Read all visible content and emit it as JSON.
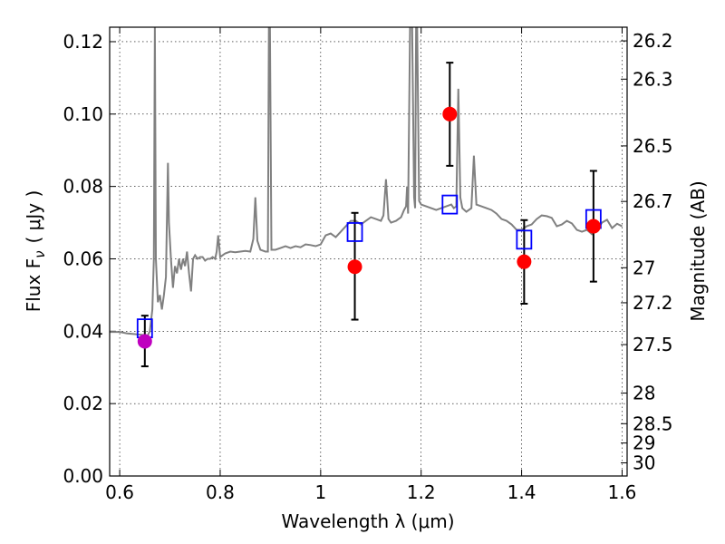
{
  "chart_data": {
    "type": "scatter",
    "xlabel": "Wavelength  λ (μm)",
    "ylabel": "Flux  F",
    "ylabel_sub": "ν",
    "ylabel_unit": "(  μJy )",
    "y2label": "Magnitude (AB)",
    "xlim": [
      0.58,
      1.61
    ],
    "ylim": [
      0.0,
      0.124
    ],
    "grid": true,
    "x_ticks": [
      {
        "value": 0.6,
        "label": "0.6"
      },
      {
        "value": 0.8,
        "label": "0.8"
      },
      {
        "value": 1.0,
        "label": "1"
      },
      {
        "value": 1.2,
        "label": "1.2"
      },
      {
        "value": 1.4,
        "label": "1.4"
      },
      {
        "value": 1.6,
        "label": "1.6"
      }
    ],
    "y_ticks": [
      {
        "value": 0.0,
        "label": "0.00"
      },
      {
        "value": 0.02,
        "label": "0.02"
      },
      {
        "value": 0.04,
        "label": "0.04"
      },
      {
        "value": 0.06,
        "label": "0.06"
      },
      {
        "value": 0.08,
        "label": "0.08"
      },
      {
        "value": 0.1,
        "label": "0.10"
      },
      {
        "value": 0.12,
        "label": "0.12"
      }
    ],
    "y2_ticks": [
      {
        "mag": 26.2,
        "label": "26.2"
      },
      {
        "mag": 26.3,
        "label": "26.3"
      },
      {
        "mag": 26.5,
        "label": "26.5"
      },
      {
        "mag": 26.7,
        "label": "26.7"
      },
      {
        "mag": 27.0,
        "label": "27"
      },
      {
        "mag": 27.2,
        "label": "27.2"
      },
      {
        "mag": 27.5,
        "label": "27.5"
      },
      {
        "mag": 28.0,
        "label": "28"
      },
      {
        "mag": 28.5,
        "label": "28.5"
      },
      {
        "mag": 29.0,
        "label": "29"
      },
      {
        "mag": 30.0,
        "label": "30"
      }
    ],
    "observed": [
      {
        "x": 0.65,
        "y": 0.0372,
        "yerr_low": 0.0303,
        "yerr_high": 0.0443,
        "color": "#bf00bf"
      },
      {
        "x": 1.068,
        "y": 0.0578,
        "yerr_low": 0.0432,
        "yerr_high": 0.0727,
        "color": "#ff0000"
      },
      {
        "x": 1.257,
        "y": 0.1,
        "yerr_low": 0.0857,
        "yerr_high": 0.1142,
        "color": "#ff0000"
      },
      {
        "x": 1.405,
        "y": 0.0592,
        "yerr_low": 0.0476,
        "yerr_high": 0.0707,
        "color": "#ff0000"
      },
      {
        "x": 1.543,
        "y": 0.069,
        "yerr_low": 0.0537,
        "yerr_high": 0.0843,
        "color": "#ff0000"
      }
    ],
    "model_photometry": [
      {
        "x": 0.65,
        "y": 0.0408
      },
      {
        "x": 1.068,
        "y": 0.0674
      },
      {
        "x": 1.257,
        "y": 0.075
      },
      {
        "x": 1.405,
        "y": 0.0653
      },
      {
        "x": 1.543,
        "y": 0.071
      }
    ],
    "spectrum": {
      "color": "#808080",
      "x": [
        0.58,
        0.6,
        0.615,
        0.63,
        0.645,
        0.655,
        0.66,
        0.665,
        0.668,
        0.67,
        0.672,
        0.676,
        0.68,
        0.684,
        0.688,
        0.692,
        0.696,
        0.698,
        0.702,
        0.706,
        0.71,
        0.714,
        0.718,
        0.722,
        0.726,
        0.73,
        0.734,
        0.738,
        0.742,
        0.746,
        0.75,
        0.755,
        0.76,
        0.765,
        0.77,
        0.775,
        0.78,
        0.785,
        0.79,
        0.793,
        0.796,
        0.8,
        0.81,
        0.82,
        0.83,
        0.84,
        0.85,
        0.86,
        0.866,
        0.87,
        0.874,
        0.88,
        0.89,
        0.895,
        0.897,
        0.899,
        0.902,
        0.91,
        0.92,
        0.93,
        0.94,
        0.95,
        0.96,
        0.97,
        0.98,
        0.99,
        1.0,
        1.01,
        1.02,
        1.03,
        1.04,
        1.05,
        1.06,
        1.07,
        1.08,
        1.09,
        1.1,
        1.11,
        1.12,
        1.125,
        1.13,
        1.135,
        1.14,
        1.15,
        1.16,
        1.166,
        1.17,
        1.172,
        1.174,
        1.178,
        1.182,
        1.186,
        1.188,
        1.19,
        1.192,
        1.196,
        1.2,
        1.21,
        1.22,
        1.23,
        1.24,
        1.25,
        1.26,
        1.265,
        1.27,
        1.274,
        1.278,
        1.282,
        1.29,
        1.3,
        1.305,
        1.31,
        1.32,
        1.33,
        1.34,
        1.35,
        1.36,
        1.37,
        1.38,
        1.39,
        1.4,
        1.41,
        1.42,
        1.43,
        1.44,
        1.45,
        1.46,
        1.47,
        1.48,
        1.49,
        1.5,
        1.51,
        1.52,
        1.53,
        1.54,
        1.55,
        1.56,
        1.57,
        1.58,
        1.59,
        1.6
      ],
      "y": [
        0.0398,
        0.0398,
        0.0394,
        0.0392,
        0.039,
        0.0386,
        0.04,
        0.046,
        0.06,
        0.125,
        0.06,
        0.048,
        0.05,
        0.046,
        0.05,
        0.055,
        0.0865,
        0.07,
        0.06,
        0.052,
        0.058,
        0.056,
        0.06,
        0.057,
        0.06,
        0.058,
        0.062,
        0.056,
        0.051,
        0.06,
        0.061,
        0.06,
        0.0605,
        0.0605,
        0.0595,
        0.06,
        0.06,
        0.0605,
        0.06,
        0.062,
        0.0665,
        0.0605,
        0.0615,
        0.062,
        0.0618,
        0.062,
        0.0622,
        0.062,
        0.0655,
        0.077,
        0.065,
        0.0625,
        0.062,
        0.062,
        0.125,
        0.125,
        0.0625,
        0.0625,
        0.063,
        0.0635,
        0.063,
        0.0635,
        0.0632,
        0.064,
        0.0638,
        0.0635,
        0.064,
        0.0665,
        0.067,
        0.066,
        0.0675,
        0.069,
        0.0705,
        0.0705,
        0.0695,
        0.0705,
        0.0715,
        0.071,
        0.0705,
        0.072,
        0.082,
        0.071,
        0.07,
        0.0705,
        0.0715,
        0.0735,
        0.0745,
        0.08,
        0.0725,
        0.125,
        0.125,
        0.077,
        0.074,
        0.125,
        0.125,
        0.076,
        0.075,
        0.0745,
        0.074,
        0.0735,
        0.074,
        0.0745,
        0.075,
        0.074,
        0.0745,
        0.107,
        0.077,
        0.074,
        0.073,
        0.074,
        0.0885,
        0.075,
        0.0745,
        0.074,
        0.0735,
        0.0725,
        0.071,
        0.0705,
        0.0695,
        0.068,
        0.068,
        0.069,
        0.0695,
        0.071,
        0.072,
        0.0718,
        0.0713,
        0.069,
        0.0695,
        0.0705,
        0.0698,
        0.068,
        0.0675,
        0.068,
        0.0668,
        0.068,
        0.07,
        0.0708,
        0.0685,
        0.0697,
        0.069
      ]
    }
  }
}
